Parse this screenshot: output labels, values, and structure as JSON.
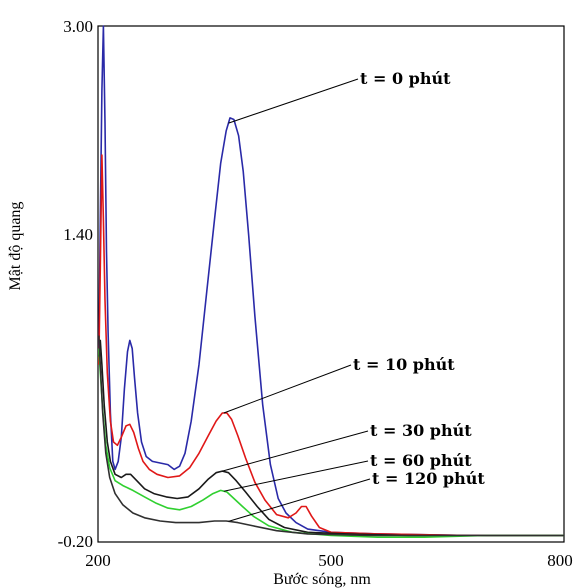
{
  "chart_data": {
    "type": "line",
    "title": "",
    "xlabel": "Bước sóng, nm",
    "ylabel": "Mật độ quang",
    "xlim": [
      200,
      800
    ],
    "ylim": [
      -0.2,
      3.0
    ],
    "x_ticks": [
      "200",
      "500",
      "800"
    ],
    "y_ticks": [
      "3.00",
      "1.40",
      "-0.20"
    ],
    "grid": false,
    "legend": "none",
    "series": [
      {
        "name": "t = 0 phút",
        "color": "#2a2aa8",
        "points": [
          [
            201,
            0.95
          ],
          [
            203,
            1.8
          ],
          [
            205,
            2.6
          ],
          [
            207,
            3.0
          ],
          [
            209,
            2.4
          ],
          [
            211,
            1.6
          ],
          [
            213,
            1.1
          ],
          [
            216,
            0.6
          ],
          [
            219,
            0.3
          ],
          [
            222,
            0.25
          ],
          [
            226,
            0.3
          ],
          [
            230,
            0.45
          ],
          [
            234,
            0.75
          ],
          [
            238,
            0.98
          ],
          [
            241,
            1.05
          ],
          [
            244,
            1.0
          ],
          [
            247,
            0.82
          ],
          [
            251,
            0.6
          ],
          [
            256,
            0.42
          ],
          [
            262,
            0.33
          ],
          [
            270,
            0.3
          ],
          [
            280,
            0.29
          ],
          [
            290,
            0.28
          ],
          [
            298,
            0.25
          ],
          [
            305,
            0.27
          ],
          [
            312,
            0.35
          ],
          [
            320,
            0.55
          ],
          [
            330,
            0.9
          ],
          [
            340,
            1.35
          ],
          [
            350,
            1.8
          ],
          [
            358,
            2.15
          ],
          [
            365,
            2.35
          ],
          [
            370,
            2.43
          ],
          [
            375,
            2.42
          ],
          [
            381,
            2.32
          ],
          [
            387,
            2.1
          ],
          [
            394,
            1.7
          ],
          [
            402,
            1.2
          ],
          [
            412,
            0.65
          ],
          [
            422,
            0.28
          ],
          [
            432,
            0.07
          ],
          [
            442,
            -0.02
          ],
          [
            455,
            -0.08
          ],
          [
            470,
            -0.12
          ],
          [
            500,
            -0.14
          ],
          [
            560,
            -0.15
          ],
          [
            680,
            -0.16
          ],
          [
            800,
            -0.16
          ]
        ]
      },
      {
        "name": "t = 10 phút",
        "color": "#e01818",
        "points": [
          [
            201,
            0.9
          ],
          [
            203,
            1.5
          ],
          [
            205,
            2.2
          ],
          [
            207,
            1.8
          ],
          [
            209,
            1.3
          ],
          [
            212,
            0.85
          ],
          [
            216,
            0.55
          ],
          [
            220,
            0.42
          ],
          [
            225,
            0.4
          ],
          [
            230,
            0.45
          ],
          [
            236,
            0.52
          ],
          [
            241,
            0.53
          ],
          [
            246,
            0.48
          ],
          [
            252,
            0.38
          ],
          [
            258,
            0.3
          ],
          [
            266,
            0.25
          ],
          [
            276,
            0.22
          ],
          [
            290,
            0.2
          ],
          [
            305,
            0.21
          ],
          [
            318,
            0.26
          ],
          [
            330,
            0.35
          ],
          [
            342,
            0.46
          ],
          [
            352,
            0.55
          ],
          [
            360,
            0.6
          ],
          [
            366,
            0.6
          ],
          [
            372,
            0.56
          ],
          [
            380,
            0.46
          ],
          [
            390,
            0.32
          ],
          [
            402,
            0.17
          ],
          [
            415,
            0.06
          ],
          [
            430,
            -0.03
          ],
          [
            445,
            -0.05
          ],
          [
            455,
            -0.02
          ],
          [
            462,
            0.02
          ],
          [
            468,
            0.02
          ],
          [
            475,
            -0.04
          ],
          [
            485,
            -0.11
          ],
          [
            500,
            -0.14
          ],
          [
            560,
            -0.15
          ],
          [
            680,
            -0.16
          ],
          [
            800,
            -0.16
          ]
        ]
      },
      {
        "name": "t = 30 phút",
        "color": "#1a1a1a",
        "points": [
          [
            201,
            0.95
          ],
          [
            203,
            1.05
          ],
          [
            205,
            0.9
          ],
          [
            208,
            0.65
          ],
          [
            212,
            0.42
          ],
          [
            216,
            0.3
          ],
          [
            222,
            0.22
          ],
          [
            230,
            0.2
          ],
          [
            236,
            0.22
          ],
          [
            242,
            0.22
          ],
          [
            250,
            0.18
          ],
          [
            260,
            0.13
          ],
          [
            272,
            0.1
          ],
          [
            288,
            0.08
          ],
          [
            302,
            0.07
          ],
          [
            316,
            0.08
          ],
          [
            330,
            0.13
          ],
          [
            342,
            0.19
          ],
          [
            352,
            0.23
          ],
          [
            360,
            0.24
          ],
          [
            368,
            0.23
          ],
          [
            378,
            0.18
          ],
          [
            390,
            0.11
          ],
          [
            405,
            0.02
          ],
          [
            420,
            -0.06
          ],
          [
            440,
            -0.11
          ],
          [
            470,
            -0.14
          ],
          [
            520,
            -0.15
          ],
          [
            600,
            -0.16
          ],
          [
            800,
            -0.16
          ]
        ]
      },
      {
        "name": "t = 60 phút",
        "color": "#30d030",
        "points": [
          [
            201,
            1.0
          ],
          [
            203,
            0.85
          ],
          [
            206,
            0.62
          ],
          [
            210,
            0.4
          ],
          [
            215,
            0.26
          ],
          [
            222,
            0.18
          ],
          [
            232,
            0.15
          ],
          [
            245,
            0.12
          ],
          [
            260,
            0.08
          ],
          [
            275,
            0.04
          ],
          [
            290,
            0.01
          ],
          [
            305,
            0.0
          ],
          [
            320,
            0.02
          ],
          [
            335,
            0.06
          ],
          [
            348,
            0.1
          ],
          [
            358,
            0.12
          ],
          [
            366,
            0.11
          ],
          [
            375,
            0.07
          ],
          [
            386,
            0.02
          ],
          [
            400,
            -0.04
          ],
          [
            420,
            -0.1
          ],
          [
            450,
            -0.14
          ],
          [
            500,
            -0.16
          ],
          [
            560,
            -0.17
          ],
          [
            620,
            -0.17
          ],
          [
            700,
            -0.16
          ],
          [
            800,
            -0.16
          ]
        ]
      },
      {
        "name": "t = 120 phút",
        "color": "#303030",
        "points": [
          [
            201,
            1.08
          ],
          [
            203,
            0.9
          ],
          [
            206,
            0.6
          ],
          [
            210,
            0.35
          ],
          [
            215,
            0.2
          ],
          [
            222,
            0.1
          ],
          [
            232,
            0.03
          ],
          [
            245,
            -0.02
          ],
          [
            260,
            -0.05
          ],
          [
            280,
            -0.07
          ],
          [
            300,
            -0.08
          ],
          [
            330,
            -0.08
          ],
          [
            350,
            -0.07
          ],
          [
            365,
            -0.07
          ],
          [
            380,
            -0.08
          ],
          [
            400,
            -0.1
          ],
          [
            430,
            -0.13
          ],
          [
            470,
            -0.15
          ],
          [
            550,
            -0.16
          ],
          [
            800,
            -0.16
          ]
        ]
      }
    ],
    "annotations": [
      {
        "text": "t = 0 phút",
        "series": 0,
        "at_x": 368
      },
      {
        "text": "t = 10 phút",
        "series": 1,
        "at_x": 362
      },
      {
        "text": "t = 30 phút",
        "series": 2,
        "at_x": 360
      },
      {
        "text": "t = 60 phút",
        "series": 3,
        "at_x": 362
      },
      {
        "text": "t = 120 phút",
        "series": 4,
        "at_x": 368
      }
    ]
  }
}
